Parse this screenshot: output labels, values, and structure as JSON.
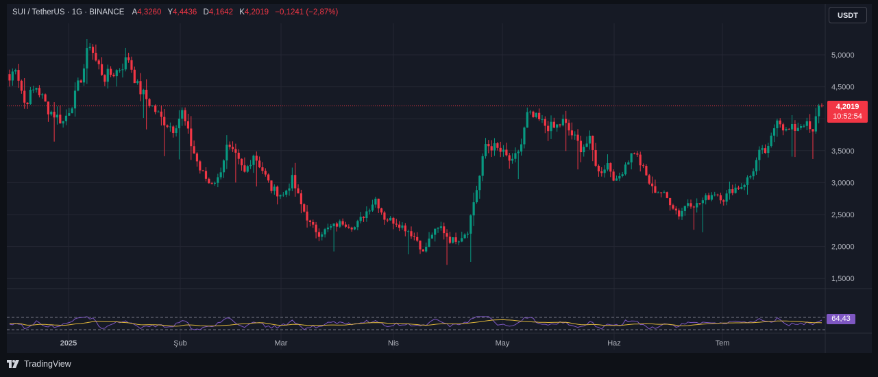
{
  "header": {
    "symbol": "SUI / TetherUS · 1G · BINANCE",
    "open_label": "A",
    "open": "4,3260",
    "high_label": "Y",
    "high": "4,4436",
    "low_label": "D",
    "low": "4,1642",
    "close_label": "K",
    "close": "4,2019",
    "change": "−0,1241 (−2,87%)"
  },
  "currency_button": "USDT",
  "last_price": {
    "price": "4,2019",
    "countdown": "10:52:54"
  },
  "rsi_value": "64,43",
  "brand": "TradingView",
  "colors": {
    "up": "#089981",
    "down": "#f23645",
    "rsi": "#7e57c2",
    "rsi_ma": "#e2b93b",
    "background": "#161a25",
    "grid": "#242733"
  },
  "chart_data": {
    "type": "candlestick",
    "y_axis": {
      "ticks": [
        "5,0000",
        "4,5000",
        "4,0000",
        "3,5000",
        "3,0000",
        "2,5000",
        "2,0000",
        "1,5000"
      ],
      "tick_values": [
        5.0,
        4.5,
        4.0,
        3.5,
        3.0,
        2.5,
        2.0,
        1.5
      ]
    },
    "x_axis": {
      "labels": [
        "2025",
        "Şub",
        "Mar",
        "Nis",
        "May",
        "Haz",
        "Tem"
      ]
    },
    "last_price_line": 4.2019,
    "price_path": [
      [
        0,
        4.6
      ],
      [
        2,
        4.85
      ],
      [
        5,
        4.25
      ],
      [
        9,
        4.5
      ],
      [
        13,
        4.15
      ],
      [
        18,
        3.95
      ],
      [
        22,
        4.35
      ],
      [
        25,
        4.8
      ],
      [
        27,
        5.2
      ],
      [
        29,
        4.9
      ],
      [
        32,
        4.65
      ],
      [
        36,
        4.75
      ],
      [
        40,
        4.95
      ],
      [
        43,
        4.5
      ],
      [
        47,
        4.25
      ],
      [
        51,
        4.0
      ],
      [
        55,
        3.85
      ],
      [
        58,
        4.1
      ],
      [
        61,
        3.6
      ],
      [
        64,
        3.2
      ],
      [
        67,
        3.0
      ],
      [
        70,
        3.05
      ],
      [
        73,
        3.55
      ],
      [
        76,
        3.4
      ],
      [
        79,
        3.15
      ],
      [
        82,
        3.45
      ],
      [
        85,
        3.2
      ],
      [
        88,
        2.9
      ],
      [
        92,
        2.8
      ],
      [
        95,
        3.05
      ],
      [
        98,
        2.65
      ],
      [
        101,
        2.35
      ],
      [
        104,
        2.2
      ],
      [
        108,
        2.3
      ],
      [
        112,
        2.38
      ],
      [
        116,
        2.3
      ],
      [
        120,
        2.55
      ],
      [
        123,
        2.75
      ],
      [
        126,
        2.45
      ],
      [
        130,
        2.38
      ],
      [
        134,
        2.25
      ],
      [
        137,
        2.1
      ],
      [
        139,
        1.9
      ],
      [
        142,
        2.2
      ],
      [
        145,
        2.3
      ],
      [
        148,
        2.1
      ],
      [
        151,
        2.12
      ],
      [
        154,
        2.25
      ],
      [
        156,
        2.7
      ],
      [
        158,
        3.1
      ],
      [
        160,
        3.6
      ],
      [
        163,
        3.55
      ],
      [
        166,
        3.45
      ],
      [
        169,
        3.3
      ],
      [
        172,
        3.6
      ],
      [
        174,
        4.05
      ],
      [
        177,
        4.0
      ],
      [
        180,
        3.9
      ],
      [
        183,
        3.85
      ],
      [
        186,
        3.95
      ],
      [
        189,
        3.75
      ],
      [
        192,
        3.55
      ],
      [
        195,
        3.65
      ],
      [
        198,
        3.15
      ],
      [
        201,
        3.3
      ],
      [
        204,
        3.0
      ],
      [
        207,
        3.3
      ],
      [
        210,
        3.5
      ],
      [
        213,
        3.2
      ],
      [
        216,
        2.9
      ],
      [
        219,
        2.85
      ],
      [
        222,
        2.7
      ],
      [
        225,
        2.5
      ],
      [
        228,
        2.7
      ],
      [
        231,
        2.65
      ],
      [
        234,
        2.75
      ],
      [
        237,
        2.85
      ],
      [
        240,
        2.75
      ],
      [
        243,
        2.9
      ],
      [
        246,
        2.95
      ],
      [
        249,
        3.1
      ],
      [
        252,
        3.45
      ],
      [
        255,
        3.5
      ],
      [
        258,
        4.05
      ],
      [
        261,
        3.8
      ],
      [
        264,
        3.85
      ],
      [
        267,
        3.95
      ],
      [
        270,
        3.75
      ],
      [
        272,
        4.25
      ],
      [
        273,
        4.2019
      ]
    ],
    "series": [
      {
        "name": "RSI",
        "last": 64.43
      }
    ]
  }
}
